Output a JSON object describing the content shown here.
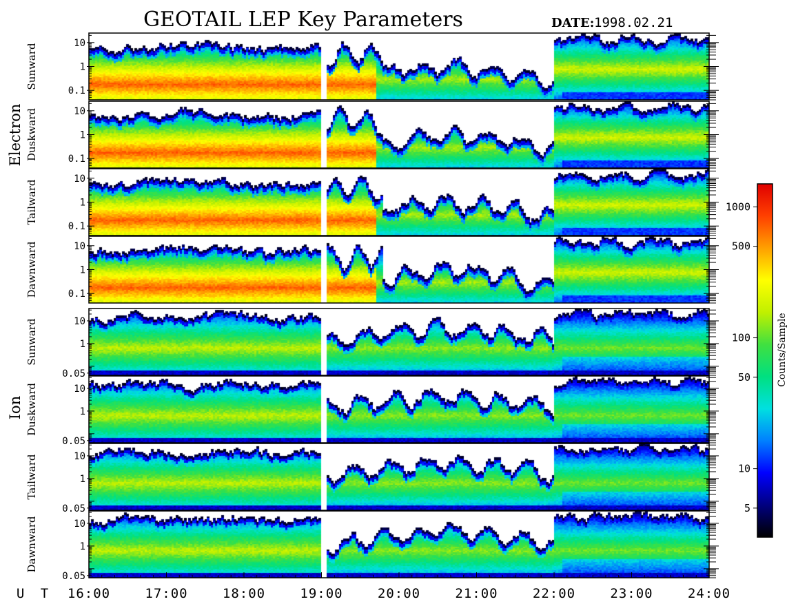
{
  "title": "GEOTAIL LEP Key Parameters",
  "date_label": "DATE:",
  "date_value": "1998.02.21",
  "colors": {
    "background": "#ffffff",
    "frame": "#000000",
    "gap": "#ffffff"
  },
  "chart_data": {
    "type": "heatmap",
    "x_label": "U T",
    "x_ticks": [
      "16:00",
      "17:00",
      "18:00",
      "19:00",
      "20:00",
      "21:00",
      "22:00",
      "23:00",
      "24:00"
    ],
    "x_range_hours": [
      16,
      24
    ],
    "data_gap_hours": [
      19.0,
      19.06
    ],
    "colorbar": {
      "label": "Counts/Sample",
      "scale": "log",
      "range": [
        3,
        1500
      ],
      "ticks": [
        "5",
        "10",
        "50",
        "100",
        "500",
        "1000"
      ],
      "colormap": [
        "#000000",
        "#000080",
        "#0000ff",
        "#0080ff",
        "#00e0e0",
        "#00e080",
        "#40e040",
        "#c0f000",
        "#ffff00",
        "#ffa000",
        "#ff4000",
        "#e00000"
      ]
    },
    "groups": [
      {
        "name": "Electron",
        "panels": [
          {
            "label": "Sunward",
            "y_ticks": [
              "10",
              "1",
              "0.1"
            ],
            "y_scale": "log",
            "y_range": [
              0.04,
              25
            ]
          },
          {
            "label": "Duskward",
            "y_ticks": [
              "10",
              "1",
              "0.1"
            ],
            "y_scale": "log",
            "y_range": [
              0.04,
              25
            ]
          },
          {
            "label": "Tailward",
            "y_ticks": [
              "10",
              "1",
              "0.1"
            ],
            "y_scale": "log",
            "y_range": [
              0.04,
              25
            ]
          },
          {
            "label": "Dawnward",
            "y_ticks": [
              "10",
              "1",
              "0.1"
            ],
            "y_scale": "log",
            "y_range": [
              0.04,
              25
            ]
          }
        ]
      },
      {
        "name": "Ion",
        "panels": [
          {
            "label": "Sunward",
            "y_ticks": [
              "10",
              "1",
              "0.05"
            ],
            "y_scale": "log",
            "y_range": [
              0.04,
              35
            ]
          },
          {
            "label": "Duskward",
            "y_ticks": [
              "10",
              "1",
              "0.05"
            ],
            "y_scale": "log",
            "y_range": [
              0.04,
              35
            ]
          },
          {
            "label": "Tailward",
            "y_ticks": [
              "10",
              "1",
              "0.05"
            ],
            "y_scale": "log",
            "y_range": [
              0.04,
              35
            ]
          },
          {
            "label": "Dawnward",
            "y_ticks": [
              "10",
              "1",
              "0.05"
            ],
            "y_scale": "log",
            "y_range": [
              0.04,
              35
            ]
          }
        ]
      }
    ]
  }
}
